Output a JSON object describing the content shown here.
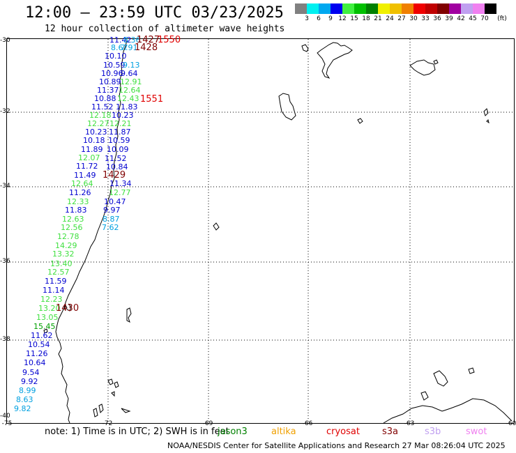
{
  "title": "12:00 – 23:59 UTC 03/23/2025",
  "subtitle": "12 hour collection of altimeter wave heights",
  "scale": {
    "unit_label": "(ft)",
    "colors": [
      "#808080",
      "#00f0f0",
      "#00a8f0",
      "#0000f0",
      "#40f040",
      "#00c000",
      "#008000",
      "#f0f000",
      "#f0c000",
      "#f08000",
      "#f00000",
      "#c00000",
      "#800000",
      "#a000a0",
      "#c0a0f0",
      "#f080f0",
      "#000000"
    ],
    "labels": [
      "3",
      "6",
      "9",
      "12",
      "15",
      "18",
      "21",
      "24",
      "27",
      "30",
      "33",
      "36",
      "39",
      "42",
      "45",
      "70"
    ]
  },
  "axes": {
    "lat_labels": [
      "-30",
      "-32",
      "-34",
      "-36",
      "-38",
      "-40"
    ],
    "lon_labels": [
      "-75",
      "-72",
      "-69",
      "-66",
      "-63",
      "-60"
    ]
  },
  "observations": [
    {
      "text": "11.42",
      "color": "#0000d0"
    },
    {
      "text": "8.67",
      "color": "#00a0e0"
    },
    {
      "text": "10.10",
      "color": "#0000d0"
    },
    {
      "text": "10.59",
      "color": "#0000d0"
    },
    {
      "text": "10.96",
      "color": "#0000d0"
    },
    {
      "text": "10.89",
      "color": "#0000d0"
    },
    {
      "text": "11.37",
      "color": "#0000d0"
    },
    {
      "text": "10.88",
      "color": "#0000d0"
    },
    {
      "text": "11.52",
      "color": "#0000d0"
    },
    {
      "text": "12.18",
      "color": "#40e040"
    },
    {
      "text": "12.27",
      "color": "#40e040"
    },
    {
      "text": "10.23",
      "color": "#0000d0"
    },
    {
      "text": "10.18",
      "color": "#0000d0"
    },
    {
      "text": "11.89",
      "color": "#0000d0"
    },
    {
      "text": "12.07",
      "color": "#40e040"
    },
    {
      "text": "11.72",
      "color": "#0000d0"
    },
    {
      "text": "11.49",
      "color": "#0000d0"
    },
    {
      "text": "12.64",
      "color": "#40e040"
    },
    {
      "text": "11.26",
      "color": "#0000d0"
    },
    {
      "text": "12.33",
      "color": "#40e040"
    },
    {
      "text": "11.83",
      "color": "#0000d0"
    },
    {
      "text": "12.63",
      "color": "#40e040"
    },
    {
      "text": "12.56",
      "color": "#40e040"
    },
    {
      "text": "12.78",
      "color": "#40e040"
    },
    {
      "text": "14.29",
      "color": "#40e040"
    },
    {
      "text": "13.32",
      "color": "#40e040"
    },
    {
      "text": "13.40",
      "color": "#40e040"
    },
    {
      "text": "12.57",
      "color": "#40e040"
    },
    {
      "text": "11.59",
      "color": "#0000d0"
    },
    {
      "text": "11.14",
      "color": "#0000d0"
    },
    {
      "text": "12.23",
      "color": "#40e040"
    },
    {
      "text": "13.20",
      "color": "#40e040"
    },
    {
      "text": "13.05",
      "color": "#40e040"
    },
    {
      "text": "15.45",
      "color": "#00a000"
    },
    {
      "text": "11.62",
      "color": "#0000d0"
    },
    {
      "text": "10.54",
      "color": "#0000d0"
    },
    {
      "text": "11.26",
      "color": "#0000d0"
    },
    {
      "text": "10.64",
      "color": "#0000d0"
    },
    {
      "text": "9.54",
      "color": "#0000d0"
    },
    {
      "text": "9.92",
      "color": "#0000d0"
    },
    {
      "text": "8.99",
      "color": "#00a0e0"
    },
    {
      "text": "8.63",
      "color": "#00a0e0"
    },
    {
      "text": "9.82",
      "color": "#00a0e0"
    },
    {
      "text": "8.36",
      "color": "#00a0e0"
    },
    {
      "text": "7.91",
      "color": "#00a0e0"
    },
    {
      "text": "9.13",
      "color": "#00a0e0"
    },
    {
      "text": "9.64",
      "color": "#0000d0"
    },
    {
      "text": "12.91",
      "color": "#40e040"
    },
    {
      "text": "12.64",
      "color": "#40e040"
    },
    {
      "text": "12.43",
      "color": "#40e040"
    },
    {
      "text": "11.83",
      "color": "#0000d0"
    },
    {
      "text": "10.23",
      "color": "#0000d0"
    },
    {
      "text": "12.21",
      "color": "#40e040"
    },
    {
      "text": "11.87",
      "color": "#0000d0"
    },
    {
      "text": "10.59",
      "color": "#0000d0"
    },
    {
      "text": "10.09",
      "color": "#0000d0"
    },
    {
      "text": "11.52",
      "color": "#0000d0"
    },
    {
      "text": "10.84",
      "color": "#0000d0"
    },
    {
      "text": "11.34",
      "color": "#0000d0"
    },
    {
      "text": "12.77",
      "color": "#40e040"
    },
    {
      "text": "10.47",
      "color": "#0000d0"
    },
    {
      "text": "9.97",
      "color": "#0000d0"
    },
    {
      "text": "8.87",
      "color": "#00a0e0"
    },
    {
      "text": "7.62",
      "color": "#00a0e0"
    }
  ],
  "time_tags": [
    {
      "text": "1427",
      "color": "#800000"
    },
    {
      "text": "1550",
      "color": "#e00000"
    },
    {
      "text": "1428",
      "color": "#800000"
    },
    {
      "text": "1551",
      "color": "#e00000"
    },
    {
      "text": "1429",
      "color": "#800000"
    },
    {
      "text": "1430",
      "color": "#800000"
    }
  ],
  "footer": {
    "note": "note: 1) Time is in UTC; 2) SWH is in feet",
    "satellites": [
      {
        "name": "jason3",
        "color": "#008000"
      },
      {
        "name": "altika",
        "color": "#f0a000"
      },
      {
        "name": "cryosat",
        "color": "#e00000"
      },
      {
        "name": "s3a",
        "color": "#800000"
      },
      {
        "name": "s3b",
        "color": "#c0a0f0"
      },
      {
        "name": "swot",
        "color": "#f080f0"
      }
    ],
    "credit": "NOAA/NESDIS Center for Satellite Applications and Research   27 Mar 08:26:04 UTC 2025"
  }
}
